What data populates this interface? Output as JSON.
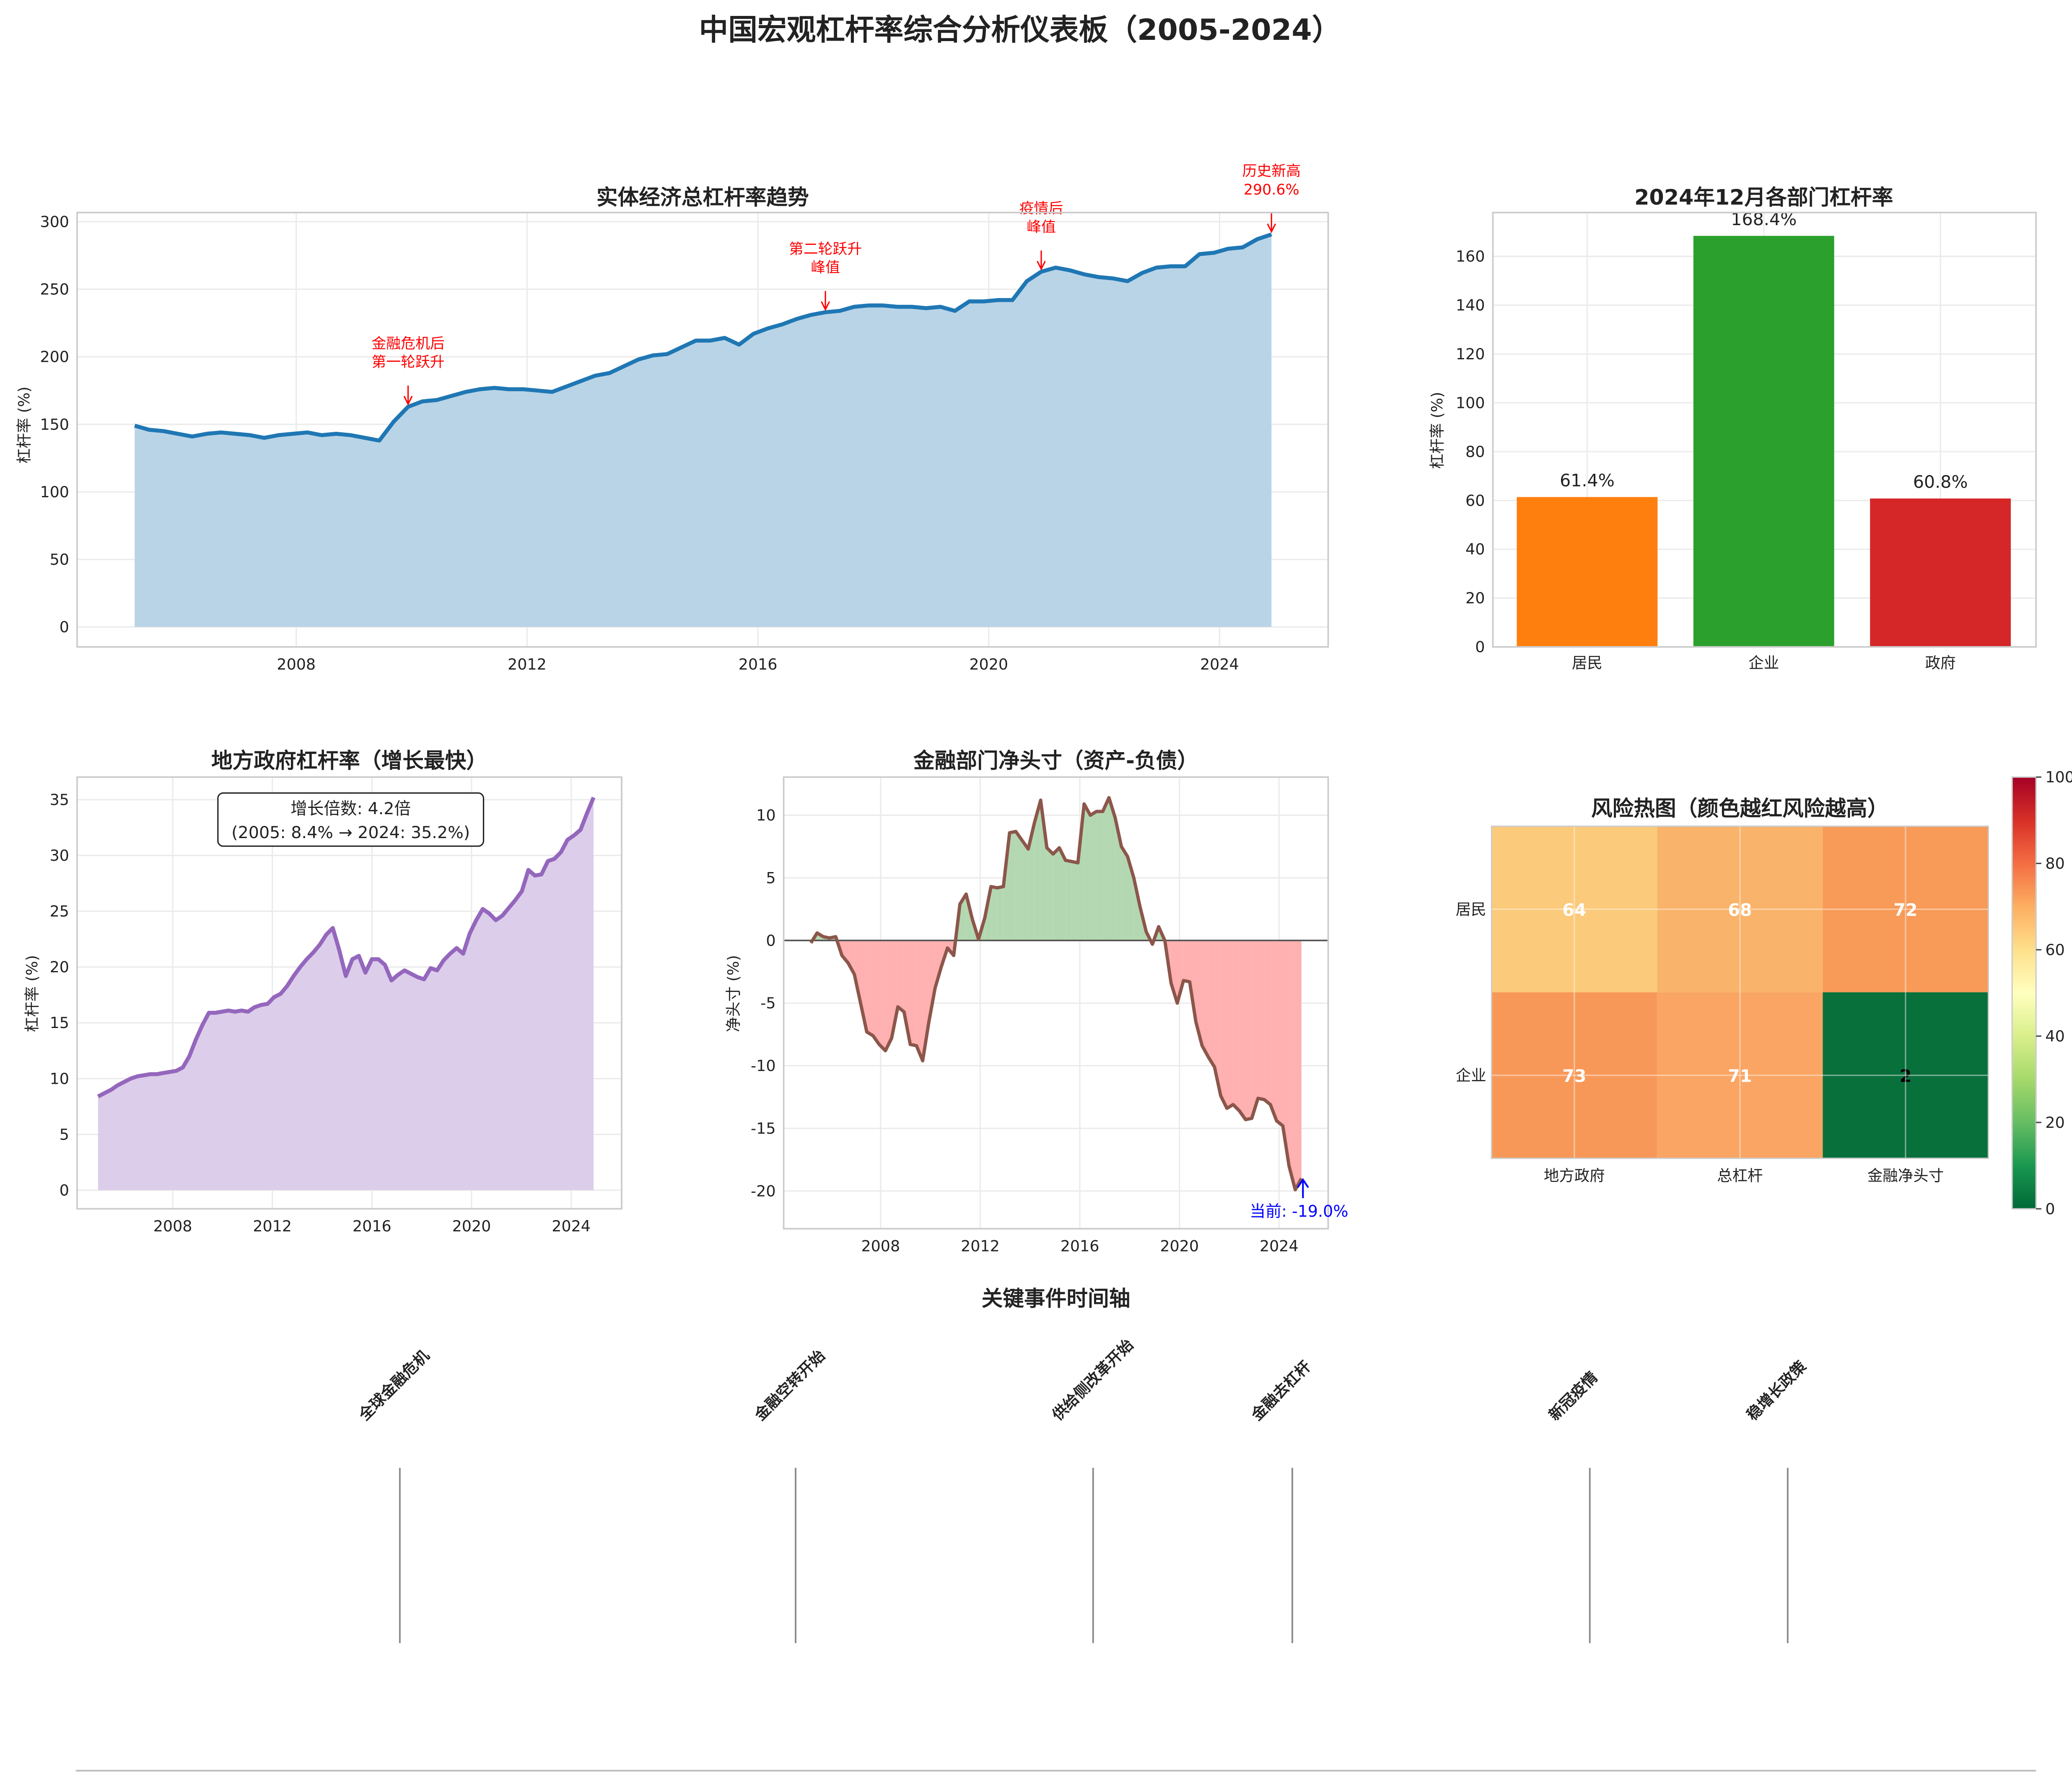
{
  "title": "中国宏观杠杆率综合分析仪表板（2005-2024）",
  "chart_data": [
    {
      "type": "area",
      "title": "实体经济总杠杆率趋势",
      "ylabel": "杠杆率 (%)",
      "xlabel": "",
      "x_range": [
        2005,
        2024.75
      ],
      "x_step": "quarter",
      "xlim": [
        2004.1,
        2025.8
      ],
      "ylim": [
        -15,
        305
      ],
      "xticks": [
        "2008",
        "2012",
        "2016",
        "2020",
        "2024"
      ],
      "yticks": [
        "0",
        "50",
        "100",
        "150",
        "200",
        "250",
        "300"
      ],
      "values": [
        149,
        146,
        145,
        143,
        141,
        143,
        144,
        143,
        142,
        140,
        142,
        143,
        144,
        142,
        143,
        142,
        140,
        138,
        152,
        163,
        167,
        168,
        171,
        174,
        176,
        177,
        176,
        176,
        175,
        174,
        178,
        182,
        186,
        188,
        193,
        198,
        201,
        202,
        207,
        212,
        212,
        214,
        209,
        217,
        221,
        224,
        228,
        231,
        233,
        234,
        237,
        238,
        238,
        237,
        237,
        236,
        237,
        234,
        241,
        241,
        242,
        242,
        256,
        263,
        266,
        264,
        261,
        259,
        258,
        256,
        262,
        266,
        267,
        267,
        276,
        277,
        280,
        281,
        287,
        290.6
      ],
      "annotations": [
        {
          "lines": [
            "金融危机后",
            "第一轮跃升"
          ],
          "index": 19
        },
        {
          "lines": [
            "第二轮跃升",
            "峰值"
          ],
          "index": 48
        },
        {
          "lines": [
            "疫情后",
            "峰值"
          ],
          "index": 63
        },
        {
          "lines": [
            "历史新高",
            "290.6%"
          ],
          "index": 79
        }
      ],
      "colors": {
        "line": "#1f77b4",
        "fill": "#b9d4e7"
      }
    },
    {
      "type": "bar",
      "title": "2024年12月各部门杠杆率",
      "ylabel": "杠杆率 (%)",
      "categories": [
        "居民",
        "企业",
        "政府"
      ],
      "values": [
        61.4,
        168.4,
        60.8
      ],
      "labels": [
        "61.4%",
        "168.4%",
        "60.8%"
      ],
      "colors": [
        "#ff7f0e",
        "#2ca02c",
        "#d62728"
      ],
      "ylim": [
        0,
        178
      ],
      "yticks": [
        "0",
        "20",
        "40",
        "60",
        "80",
        "100",
        "120",
        "140",
        "160"
      ]
    },
    {
      "type": "area",
      "title": "地方政府杠杆率（增长最快）",
      "ylabel": "杠杆率 (%)",
      "xticks": [
        "2008",
        "2012",
        "2016",
        "2020",
        "2024"
      ],
      "yticks": [
        "0",
        "5",
        "10",
        "15",
        "20",
        "25",
        "30",
        "35"
      ],
      "ylim": [
        -1.7,
        36.9
      ],
      "values": [
        8.4,
        8.7,
        9.0,
        9.4,
        9.7,
        10.0,
        10.2,
        10.3,
        10.4,
        10.4,
        10.5,
        10.6,
        10.7,
        11.0,
        12.0,
        13.5,
        14.8,
        15.9,
        15.9,
        16.0,
        16.1,
        16.0,
        16.1,
        16.0,
        16.4,
        16.6,
        16.7,
        17.3,
        17.6,
        18.3,
        19.2,
        20.0,
        20.7,
        21.3,
        22.0,
        22.9,
        23.5,
        21.5,
        19.2,
        20.7,
        21.0,
        19.5,
        20.7,
        20.7,
        20.2,
        18.8,
        19.3,
        19.7,
        19.4,
        19.1,
        18.9,
        19.9,
        19.7,
        20.6,
        21.2,
        21.7,
        21.2,
        23.0,
        24.2,
        25.2,
        24.8,
        24.2,
        24.6,
        25.3,
        26.0,
        26.8,
        28.7,
        28.2,
        28.3,
        29.5,
        29.7,
        30.3,
        31.4,
        31.8,
        32.3,
        33.8,
        35.2
      ],
      "annotation": [
        "增长倍数: 4.2倍",
        "(2005: 8.4% → 2024: 35.2%)"
      ],
      "colors": {
        "line": "#9467bd",
        "fill": "#dccdea"
      }
    },
    {
      "type": "area",
      "title": "金融部门净头寸（资产-负债）",
      "ylabel": "净头寸 (%)",
      "xticks": [
        "2008",
        "2012",
        "2016",
        "2020",
        "2024"
      ],
      "yticks": [
        "-20",
        "-15",
        "-10",
        "-5",
        "0",
        "5",
        "10"
      ],
      "ylim": [
        -21.2,
        12.5
      ],
      "values": [
        -0.2,
        0.6,
        0.3,
        0.2,
        0.3,
        -1.2,
        -1.8,
        -2.7,
        -5,
        -7.3,
        -7.6,
        -8.3,
        -8.8,
        -7.8,
        -5.3,
        -5.7,
        -8.3,
        -8.4,
        -9.6,
        -6.5,
        -3.8,
        -2.1,
        -0.6,
        -1.2,
        2.9,
        3.7,
        1.7,
        0.1,
        1.8,
        4.3,
        4.2,
        4.3,
        8.6,
        8.7,
        8,
        7.3,
        9.4,
        11.2,
        7.4,
        6.9,
        7.4,
        6.4,
        6.3,
        6.2,
        10.9,
        10,
        10.3,
        10.3,
        11.4,
        9.8,
        7.5,
        6.7,
        5,
        2.7,
        0.7,
        -0.3,
        1.1,
        0,
        -3.4,
        -5,
        -3.2,
        -3.3,
        -6.5,
        -8.4,
        -9.3,
        -10.1,
        -12.4,
        -13.4,
        -13.1,
        -13.6,
        -14.3,
        -14.2,
        -12.6,
        -12.7,
        -13.1,
        -14.4,
        -14.8,
        -18,
        -19.9,
        -19.0
      ],
      "annotation": "当前: -19.0%",
      "colors": {
        "line": "#8c564b",
        "pos": "#b3d8b1",
        "neg": "#ffb0b0",
        "ann": "#0000ff"
      }
    },
    {
      "type": "heatmap",
      "title": "风险热图（颜色越红风险越高）",
      "rows": [
        "居民",
        "企业"
      ],
      "cols": [
        "地方政府",
        "总杠杆",
        "金融净头寸"
      ],
      "values": [
        [
          64,
          68,
          72
        ],
        [
          73,
          71,
          2
        ]
      ],
      "cell_colors": [
        [
          "#fbca7a",
          "#fab36a",
          "#f89a58"
        ],
        [
          "#f89858",
          "#faa563",
          "#08703b"
        ]
      ],
      "colorbar": {
        "min": 0,
        "max": 100,
        "ticks": [
          "0",
          "20",
          "40",
          "60",
          "80",
          "100"
        ],
        "colormap": "RdYlGn_r"
      }
    }
  ],
  "timeline": {
    "title": "关键事件时间轴",
    "events": [
      "全球金融危机",
      "金融空转开始",
      "供给侧改革开始",
      "金融去杠杆",
      "新冠疫情",
      "稳增长政策"
    ]
  }
}
